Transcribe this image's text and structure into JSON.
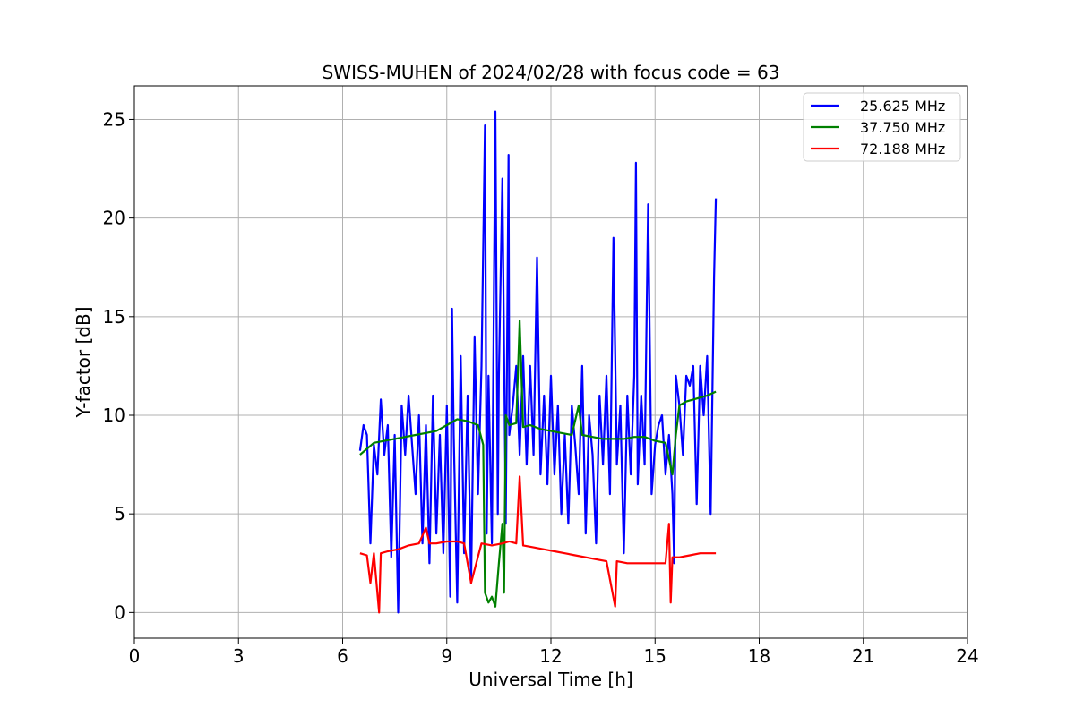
{
  "chart_data": {
    "type": "line",
    "title": "SWISS-MUHEN of 2024/02/28 with focus code = 63",
    "xlabel": "Universal Time [h]",
    "ylabel": "Y-factor [dB]",
    "xlim": [
      0,
      24
    ],
    "ylim": [
      -1.3,
      26.7
    ],
    "xticks": [
      0,
      3,
      6,
      9,
      12,
      15,
      18,
      21,
      24
    ],
    "yticks": [
      0,
      5,
      10,
      15,
      20,
      25
    ],
    "grid": true,
    "legend_position": "top-right",
    "series": [
      {
        "name": "25.625 MHz",
        "color": "#0000ff",
        "x": [
          6.5,
          6.6,
          6.7,
          6.8,
          6.9,
          7.0,
          7.1,
          7.2,
          7.3,
          7.4,
          7.5,
          7.6,
          7.7,
          7.8,
          7.9,
          8.0,
          8.1,
          8.2,
          8.3,
          8.4,
          8.5,
          8.6,
          8.7,
          8.8,
          8.9,
          9.0,
          9.1,
          9.15,
          9.2,
          9.3,
          9.4,
          9.5,
          9.6,
          9.7,
          9.8,
          9.9,
          10.0,
          10.1,
          10.15,
          10.2,
          10.3,
          10.4,
          10.47,
          10.5,
          10.6,
          10.7,
          10.78,
          10.8,
          10.9,
          11.0,
          11.1,
          11.2,
          11.3,
          11.4,
          11.5,
          11.6,
          11.7,
          11.8,
          11.9,
          12.0,
          12.1,
          12.2,
          12.3,
          12.4,
          12.5,
          12.6,
          12.7,
          12.8,
          12.9,
          13.0,
          13.1,
          13.2,
          13.3,
          13.4,
          13.5,
          13.6,
          13.7,
          13.8,
          13.9,
          14.0,
          14.1,
          14.2,
          14.3,
          14.4,
          14.45,
          14.5,
          14.6,
          14.7,
          14.8,
          14.9,
          15.0,
          15.1,
          15.2,
          15.3,
          15.4,
          15.5,
          15.55,
          15.6,
          15.7,
          15.8,
          15.9,
          16.0,
          16.1,
          16.2,
          16.3,
          16.4,
          16.5,
          16.6,
          16.7,
          16.75
        ],
        "values": [
          8.2,
          9.5,
          9.0,
          3.5,
          8.5,
          7.0,
          10.8,
          8.0,
          9.5,
          2.8,
          9.0,
          0.0,
          10.5,
          8.0,
          11.0,
          8.5,
          6.0,
          10.0,
          3.5,
          9.5,
          2.5,
          11.0,
          4.0,
          9.0,
          3.0,
          10.5,
          0.8,
          15.4,
          9.0,
          0.5,
          13.0,
          3.0,
          11.0,
          1.5,
          14.0,
          6.0,
          12.5,
          24.7,
          4.0,
          12.0,
          3.5,
          25.4,
          5.0,
          12.0,
          22.0,
          4.5,
          23.2,
          9.0,
          10.5,
          12.5,
          8.0,
          13.0,
          7.5,
          12.5,
          8.0,
          18.0,
          7.0,
          11.0,
          6.5,
          12.0,
          7.0,
          10.5,
          5.0,
          9.0,
          4.5,
          10.5,
          8.5,
          6.0,
          12.5,
          4.0,
          10.0,
          8.0,
          3.5,
          11.0,
          7.5,
          12.0,
          6.0,
          19.0,
          7.5,
          10.5,
          3.0,
          11.0,
          7.0,
          12.0,
          22.8,
          6.5,
          11.0,
          7.5,
          20.7,
          6.0,
          8.5,
          9.5,
          10.0,
          7.0,
          9.0,
          6.0,
          2.5,
          12.0,
          10.5,
          8.0,
          12.0,
          11.5,
          12.5,
          5.5,
          12.5,
          10.0,
          13.0,
          5.0,
          17.0,
          21.0
        ]
      },
      {
        "name": "37.750 MHz",
        "color": "#008000",
        "x": [
          6.5,
          6.7,
          6.9,
          7.2,
          7.5,
          7.8,
          8.1,
          8.4,
          8.7,
          9.0,
          9.3,
          9.6,
          9.9,
          10.05,
          10.1,
          10.2,
          10.3,
          10.4,
          10.5,
          10.6,
          10.65,
          10.7,
          10.8,
          11.0,
          11.1,
          11.2,
          11.4,
          11.7,
          12.0,
          12.3,
          12.6,
          12.8,
          12.9,
          13.2,
          13.5,
          13.8,
          14.1,
          14.4,
          14.7,
          15.0,
          15.3,
          15.5,
          15.6,
          15.7,
          15.9,
          16.1,
          16.3,
          16.5,
          16.75
        ],
        "values": [
          8.0,
          8.3,
          8.6,
          8.7,
          8.8,
          8.9,
          9.0,
          9.1,
          9.2,
          9.5,
          9.8,
          9.7,
          9.5,
          8.5,
          1.0,
          0.5,
          0.8,
          0.3,
          2.5,
          4.5,
          1.0,
          10.0,
          9.5,
          9.6,
          14.8,
          9.4,
          9.5,
          9.3,
          9.2,
          9.1,
          9.0,
          10.5,
          9.0,
          8.9,
          8.8,
          8.8,
          8.8,
          8.9,
          8.9,
          8.7,
          8.6,
          7.0,
          9.0,
          10.5,
          10.7,
          10.8,
          10.9,
          11.0,
          11.2
        ]
      },
      {
        "name": "72.188 MHz",
        "color": "#ff0000",
        "x": [
          6.5,
          6.7,
          6.8,
          6.9,
          7.05,
          7.1,
          7.3,
          7.6,
          7.9,
          8.2,
          8.4,
          8.5,
          8.7,
          9.0,
          9.3,
          9.5,
          9.7,
          10.0,
          10.3,
          10.6,
          10.8,
          11.0,
          11.1,
          11.2,
          11.5,
          11.8,
          12.1,
          12.4,
          12.7,
          13.0,
          13.3,
          13.6,
          13.85,
          13.9,
          14.2,
          14.5,
          14.8,
          15.1,
          15.3,
          15.4,
          15.45,
          15.5,
          15.7,
          16.0,
          16.3,
          16.6,
          16.75
        ],
        "values": [
          3.0,
          2.9,
          1.5,
          3.0,
          0.0,
          3.0,
          3.1,
          3.2,
          3.4,
          3.5,
          4.3,
          3.5,
          3.5,
          3.6,
          3.6,
          3.5,
          1.5,
          3.5,
          3.4,
          3.5,
          3.6,
          3.5,
          6.9,
          3.4,
          3.3,
          3.2,
          3.1,
          3.0,
          2.9,
          2.8,
          2.7,
          2.6,
          0.3,
          2.6,
          2.5,
          2.5,
          2.5,
          2.5,
          2.5,
          4.5,
          0.5,
          2.8,
          2.8,
          2.9,
          3.0,
          3.0,
          3.0
        ]
      }
    ]
  }
}
